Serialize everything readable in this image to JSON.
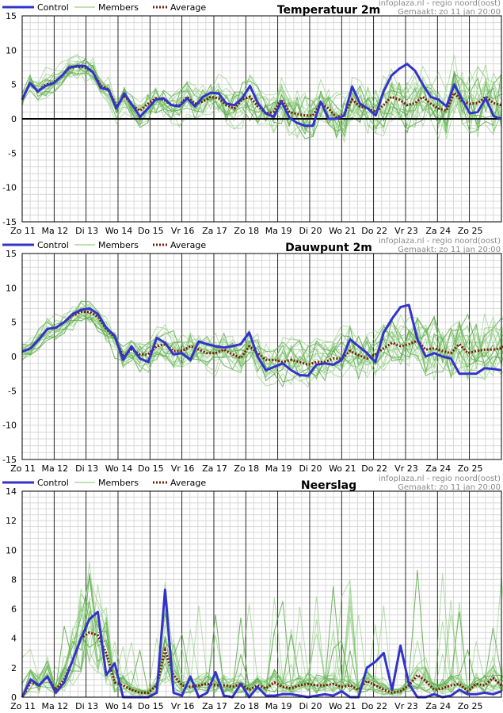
{
  "header": {
    "source": "infoplaza.nl - regio noord(oost)",
    "made": "Gemaakt: zo 11 jan 20:00"
  },
  "legend": {
    "control": "Control",
    "members": "Members",
    "average": "Average"
  },
  "colors": {
    "control": "#3333cc",
    "members": "#7cc46a",
    "average": "#7a1a0a",
    "grid": "#d8d8d8",
    "daydiv": "#000000"
  },
  "days": [
    "Zo 11",
    "Ma 12",
    "Di 13",
    "Wo 14",
    "Do 15",
    "Vr 16",
    "Za 17",
    "Zo 18",
    "Ma 19",
    "Di 20",
    "Wo 21",
    "Do 22",
    "Vr 23",
    "Za 24",
    "Zo 25"
  ],
  "chart_data": [
    {
      "type": "line",
      "title": "Temperatuur 2m",
      "ylim": [
        -15,
        15
      ],
      "yticks": [
        -15,
        -10,
        -5,
        0,
        5,
        10,
        15
      ],
      "zero_line": true,
      "series": [
        {
          "name": "Control",
          "values": [
            2.8,
            5.2,
            4.0,
            4.8,
            5.2,
            6.2,
            7.5,
            7.7,
            7.7,
            6.8,
            4.5,
            4.2,
            1.5,
            3.7,
            2.0,
            0.3,
            1.5,
            2.8,
            3.0,
            2.0,
            1.8,
            3.0,
            1.8,
            3.2,
            3.8,
            3.7,
            2.2,
            2.0,
            3.0,
            4.8,
            2.3,
            0.8,
            0.3,
            2.5,
            0.2,
            -0.6,
            -1.0,
            -1.0,
            2.5,
            0.0,
            0.0,
            0.5,
            4.7,
            2.2,
            1.5,
            0.5,
            4.0,
            6.3,
            7.3,
            8.0,
            7.0,
            5.0,
            3.2,
            2.8,
            1.8,
            5.0,
            2.8,
            0.8,
            1.0,
            3.0,
            0.4,
            0.0
          ]
        },
        {
          "name": "Average",
          "values": [
            2.8,
            5.2,
            4.0,
            5.0,
            5.2,
            6.2,
            7.4,
            7.6,
            7.5,
            6.8,
            4.8,
            4.3,
            1.8,
            3.4,
            2.0,
            1.2,
            2.2,
            3.0,
            2.8,
            2.0,
            2.0,
            3.2,
            2.2,
            2.5,
            3.2,
            3.0,
            2.0,
            1.5,
            2.8,
            3.2,
            1.8,
            0.8,
            1.0,
            2.8,
            1.0,
            0.7,
            0.5,
            0.5,
            2.3,
            1.5,
            0.2,
            0.8,
            2.8,
            1.8,
            1.5,
            1.0,
            2.0,
            3.2,
            2.8,
            2.0,
            2.3,
            3.2,
            2.2,
            1.5,
            1.2,
            3.8,
            2.5,
            2.2,
            2.3,
            3.2,
            2.3,
            2.0
          ]
        }
      ]
    },
    {
      "type": "line",
      "title": "Dauwpunt 2m",
      "ylim": [
        -15,
        15
      ],
      "yticks": [
        -15,
        -10,
        -5,
        0,
        5,
        10,
        15
      ],
      "zero_line": false,
      "series": [
        {
          "name": "Control",
          "values": [
            0.7,
            1.2,
            2.5,
            4.0,
            4.2,
            5.0,
            6.2,
            6.8,
            7.0,
            6.2,
            4.2,
            3.0,
            -0.5,
            1.5,
            -0.3,
            -0.8,
            2.7,
            2.0,
            0.3,
            0.5,
            -0.5,
            2.2,
            1.8,
            1.5,
            1.3,
            1.5,
            1.8,
            3.5,
            0.0,
            -2.0,
            -1.5,
            -1.0,
            -2.0,
            -2.7,
            -2.8,
            -1.2,
            -1.0,
            -1.2,
            -0.5,
            2.5,
            1.5,
            0.5,
            -0.8,
            3.5,
            5.5,
            7.2,
            7.5,
            2.5,
            0.0,
            0.5,
            0.0,
            -0.3,
            -2.5,
            -2.5,
            -2.5,
            -1.7,
            -1.8,
            -2.0
          ]
        },
        {
          "name": "Average",
          "values": [
            0.7,
            1.2,
            2.5,
            4.0,
            4.2,
            5.0,
            6.0,
            6.5,
            6.5,
            5.8,
            4.0,
            2.8,
            0.0,
            1.0,
            0.3,
            0.3,
            1.5,
            1.8,
            0.8,
            0.8,
            1.5,
            1.0,
            0.5,
            0.5,
            1.0,
            0.3,
            -0.2,
            1.5,
            0.5,
            -0.5,
            -0.5,
            -0.8,
            -0.5,
            -0.8,
            -1.2,
            -0.8,
            -0.8,
            -0.3,
            -0.3,
            0.8,
            0.2,
            -0.3,
            0.3,
            1.2,
            2.0,
            1.5,
            1.8,
            2.3,
            1.0,
            1.2,
            0.8,
            0.5,
            1.8,
            0.5,
            0.8,
            1.0,
            1.0,
            1.2,
            2.2,
            1.2,
            0.8,
            1.0
          ]
        }
      ]
    },
    {
      "type": "line",
      "title": "Neerslag",
      "ylim": [
        0,
        14
      ],
      "yticks": [
        0,
        2,
        4,
        6,
        8,
        10,
        12,
        14
      ],
      "zero_line": false,
      "series": [
        {
          "name": "Control",
          "values": [
            0.0,
            1.2,
            0.8,
            1.4,
            0.3,
            1.0,
            2.5,
            4.0,
            5.3,
            5.8,
            1.5,
            2.3,
            0.0,
            0.0,
            0.0,
            0.0,
            0.3,
            7.3,
            0.3,
            0.1,
            1.4,
            0.0,
            0.3,
            1.7,
            0.1,
            0.0,
            0.9,
            0.0,
            0.7,
            0.1,
            0.1,
            0.2,
            0.2,
            0.1,
            0.0,
            0.1,
            0.2,
            0.1,
            0.4,
            0.0,
            0.0,
            2.0,
            2.4,
            3.0,
            0.5,
            3.5,
            0.9,
            0.0,
            0.0,
            0.2,
            0.0,
            0.1,
            0.5,
            0.2,
            0.2,
            0.3,
            0.2,
            0.4
          ]
        },
        {
          "name": "Average",
          "values": [
            0.0,
            1.0,
            0.8,
            1.4,
            0.5,
            1.2,
            2.5,
            4.0,
            4.4,
            4.2,
            3.0,
            1.0,
            0.8,
            0.5,
            0.3,
            0.3,
            0.8,
            3.2,
            1.5,
            0.8,
            0.7,
            0.8,
            0.9,
            0.8,
            0.8,
            0.7,
            0.9,
            0.5,
            0.8,
            0.6,
            1.0,
            0.7,
            0.6,
            0.8,
            0.9,
            0.8,
            0.8,
            0.9,
            0.7,
            0.8,
            0.5,
            1.1,
            0.8,
            0.5,
            0.3,
            0.4,
            0.8,
            1.5,
            1.1,
            0.5,
            0.6,
            0.8,
            0.9,
            0.4,
            0.9,
            0.8,
            1.3,
            0.8,
            0.7,
            0.8
          ]
        }
      ]
    }
  ]
}
